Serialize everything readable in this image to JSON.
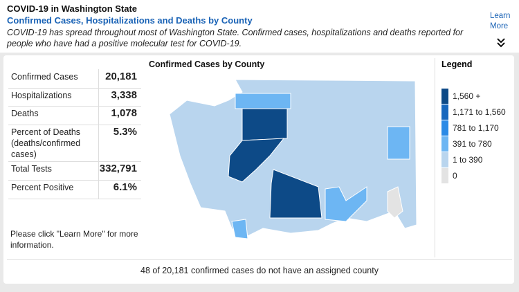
{
  "header": {
    "title": "COVID-19 in Washington State",
    "subtitle": "Confirmed Cases, Hospitalizations and Deaths by County",
    "description": "COVID-19 has spread throughout most of Washington State. Confirmed cases, hospitalizations and deaths reported for people who have had a positive molecular test for COVID-19.",
    "link": "Learn More"
  },
  "stats": [
    {
      "label": "Confirmed Cases",
      "value": "20,181"
    },
    {
      "label": "Hospitalizations",
      "value": "3,338"
    },
    {
      "label": "Deaths",
      "value": "1,078"
    },
    {
      "label": "Percent of Deaths (deaths/confirmed cases)",
      "value": "5.3%"
    },
    {
      "label": "Total Tests",
      "value": "332,791"
    },
    {
      "label": "Percent Positive",
      "value": "6.1%"
    }
  ],
  "note": "Please click \"Learn More\" for more information.",
  "map": {
    "title": "Confirmed Cases by County"
  },
  "legend": {
    "title": "Legend",
    "items": [
      {
        "label": "1,560 +",
        "color": "#0d4a87"
      },
      {
        "label": "1,171 to 1,560",
        "color": "#1767bd"
      },
      {
        "label": "781 to 1,170",
        "color": "#2a8ae6"
      },
      {
        "label": "391 to 780",
        "color": "#6db6f3"
      },
      {
        "label": "1 to 390",
        "color": "#b9d5ee"
      },
      {
        "label": "0",
        "color": "#e3e3e3"
      }
    ]
  },
  "footer": "48 of 20,181 confirmed cases do not have an assigned county"
}
